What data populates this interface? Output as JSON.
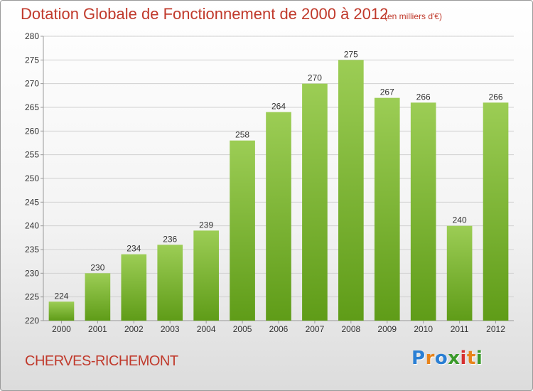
{
  "header": {
    "title": "Dotation Globale de Fonctionnement de 2000 à 2012",
    "unit": "(en milliers d'€)"
  },
  "footer": {
    "commune": "CHERVES-RICHEMONT",
    "logo": {
      "letters": [
        "P",
        "r",
        "o",
        "x",
        "i",
        "t",
        "i"
      ],
      "colors": [
        "#2a7fd4",
        "#e8841b",
        "#2a7fd4",
        "#3a9a2a",
        "#d62f2f",
        "#e8841b",
        "#3a9a2a"
      ]
    }
  },
  "colors": {
    "accent": "#c0392b",
    "bar_top": "#9ccd55",
    "bar_bottom": "#5f9c18",
    "grid": "#d0d0d0",
    "axis": "#999999"
  },
  "chart_data": {
    "type": "bar",
    "categories": [
      "2000",
      "2001",
      "2002",
      "2003",
      "2004",
      "2005",
      "2006",
      "2007",
      "2008",
      "2009",
      "2010",
      "2011",
      "2012"
    ],
    "values": [
      224,
      230,
      234,
      236,
      239,
      258,
      264,
      270,
      275,
      267,
      266,
      240,
      266
    ],
    "title": "Dotation Globale de Fonctionnement de 2000 à 2012",
    "subtitle": "(en milliers d'€)",
    "xlabel": "",
    "ylabel": "",
    "ylim": [
      220,
      280
    ],
    "yticks": [
      220,
      225,
      230,
      235,
      240,
      245,
      250,
      255,
      260,
      265,
      270,
      275,
      280
    ],
    "grid": true,
    "data_labels": true
  }
}
